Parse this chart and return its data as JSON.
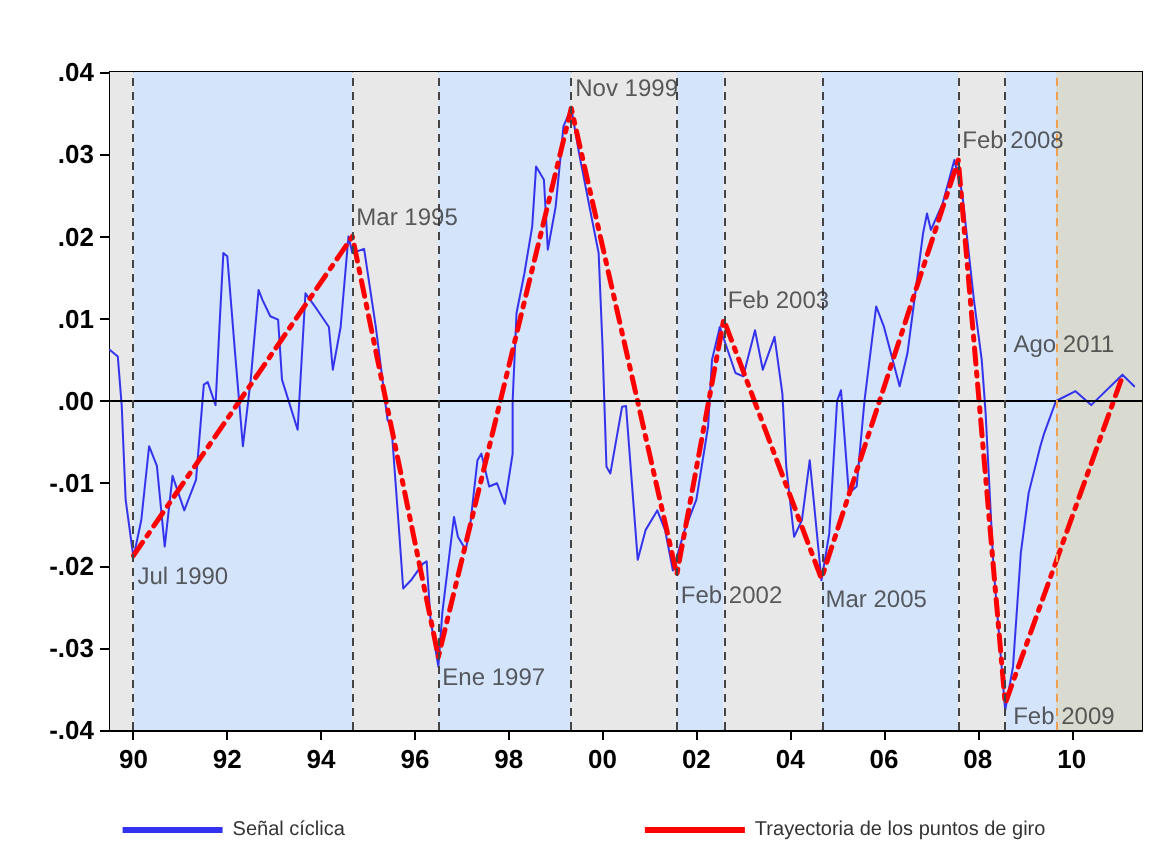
{
  "chart_data": {
    "type": "line",
    "xlim": [
      "1990-01",
      "2012-01"
    ],
    "xticks": [
      {
        "value": "1990-07",
        "label": "90"
      },
      {
        "value": "1992-07",
        "label": "92"
      },
      {
        "value": "1994-07",
        "label": "94"
      },
      {
        "value": "1996-07",
        "label": "96"
      },
      {
        "value": "1998-07",
        "label": "98"
      },
      {
        "value": "2000-07",
        "label": "00"
      },
      {
        "value": "2002-07",
        "label": "02"
      },
      {
        "value": "2004-07",
        "label": "04"
      },
      {
        "value": "2006-07",
        "label": "06"
      },
      {
        "value": "2008-07",
        "label": "08"
      },
      {
        "value": "2010-07",
        "label": "10"
      }
    ],
    "ylim": [
      -0.04,
      0.04
    ],
    "yticks": [
      {
        "value": -0.04,
        "label": "-.04"
      },
      {
        "value": -0.03,
        "label": "-.03"
      },
      {
        "value": -0.02,
        "label": "-.02"
      },
      {
        "value": -0.01,
        "label": "-.01"
      },
      {
        "value": 0,
        "label": ".00"
      },
      {
        "value": 0.01,
        "label": ".01"
      },
      {
        "value": 0.02,
        "label": ".02"
      },
      {
        "value": 0.03,
        "label": ".03"
      },
      {
        "value": 0.04,
        "label": ".04"
      }
    ],
    "grid": false,
    "legend": "bottom",
    "marker": "none",
    "series": [
      {
        "name": "Señal cíclica",
        "color": "#3333ee",
        "line_style": "solid",
        "x": [
          "1990-01",
          "1990-03",
          "1990-04",
          "1990-05",
          "1990-07",
          "1990-09",
          "1990-11",
          "1991-01",
          "1991-03",
          "1991-05",
          "1991-08",
          "1991-11",
          "1992-01",
          "1992-02",
          "1992-04",
          "1992-05",
          "1992-06",
          "1992-07",
          "1992-09",
          "1992-11",
          "1993-01",
          "1993-03",
          "1993-04",
          "1993-06",
          "1993-08",
          "1993-09",
          "1994-01",
          "1994-03",
          "1994-06",
          "1994-09",
          "1994-10",
          "1994-12",
          "1995-02",
          "1995-03",
          "1995-06",
          "1995-09",
          "1995-12",
          "1996-01",
          "1996-03",
          "1996-04",
          "1996-06",
          "1996-09",
          "1996-10",
          "1996-11",
          "1997-01",
          "1997-02",
          "1997-05",
          "1997-06",
          "1997-08",
          "1997-09",
          "1997-11",
          "1997-12",
          "1998-02",
          "1998-04",
          "1998-06",
          "1998-08",
          "1998-08",
          "1998-09",
          "1998-11",
          "1999-01",
          "1999-02",
          "1999-04",
          "1999-05",
          "1999-07",
          "1999-09",
          "1999-11",
          "2000-01",
          "2000-04",
          "2000-06",
          "2000-07",
          "2000-08",
          "2000-09",
          "2000-12",
          "2001-01",
          "2001-04",
          "2001-06",
          "2001-09",
          "2001-11",
          "2002-01",
          "2002-04",
          "2002-07",
          "2002-10",
          "2002-11",
          "2003-01",
          "2003-05",
          "2003-07",
          "2003-10",
          "2003-12",
          "2004-03",
          "2004-05",
          "2004-06",
          "2004-08",
          "2004-10",
          "2004-12",
          "2005-01",
          "2005-03",
          "2005-05",
          "2005-07",
          "2005-08",
          "2005-10",
          "2005-12",
          "2006-02",
          "2006-05",
          "2006-07",
          "2006-11",
          "2007-01",
          "2007-05",
          "2007-06",
          "2007-07",
          "2007-10",
          "2008-01",
          "2008-03",
          "2008-06",
          "2008-08",
          "2008-09",
          "2008-11",
          "2009-02",
          "2009-04",
          "2009-06",
          "2009-08",
          "2009-11",
          "2009-12",
          "2010-03",
          "2010-08",
          "2010-12",
          "2011-08",
          "2011-11"
        ],
        "values": [
          0.0062,
          0.0054,
          -0.0006,
          -0.012,
          -0.019,
          -0.0145,
          -0.0055,
          -0.0079,
          -0.0177,
          -0.0091,
          -0.0133,
          -0.0096,
          0.002,
          0.0023,
          -0.0005,
          0.009,
          0.018,
          0.0176,
          0.0058,
          -0.0055,
          0.0026,
          0.0135,
          0.0123,
          0.0103,
          0.0099,
          0.0026,
          -0.0035,
          0.0131,
          0.0111,
          0.009,
          0.0038,
          0.009,
          0.02,
          0.018,
          0.0185,
          0.009,
          -0.0023,
          -0.0031,
          -0.0161,
          -0.0228,
          -0.0218,
          -0.0198,
          -0.0195,
          -0.0266,
          -0.0323,
          -0.0258,
          -0.0141,
          -0.0165,
          -0.0181,
          -0.0157,
          -0.0072,
          -0.0064,
          -0.0104,
          -0.01,
          -0.0125,
          -0.0064,
          0.0,
          0.0107,
          0.0155,
          0.0212,
          0.0285,
          0.0269,
          0.0184,
          0.0236,
          0.0334,
          0.0356,
          0.0301,
          0.0228,
          0.018,
          0.0066,
          -0.008,
          -0.0088,
          -0.0007,
          -0.0006,
          -0.0193,
          -0.0157,
          -0.0133,
          -0.0157,
          -0.0206,
          -0.0157,
          -0.012,
          -0.0031,
          0.005,
          0.009,
          0.0034,
          0.003,
          0.0086,
          0.0038,
          0.0078,
          0.0009,
          -0.008,
          -0.0165,
          -0.0145,
          -0.0072,
          -0.012,
          -0.0218,
          -0.0161,
          0.0,
          0.0013,
          -0.0112,
          -0.0104,
          0.0,
          0.0115,
          0.009,
          0.0018,
          0.0058,
          0.0204,
          0.0228,
          0.0208,
          0.024,
          0.0293,
          0.0253,
          0.0123,
          0.005,
          -0.0015,
          -0.0201,
          -0.0376,
          -0.0323,
          -0.0185,
          -0.0112,
          -0.0055,
          -0.0039,
          0.0,
          0.0012,
          -0.0005,
          0.0032,
          0.0018
        ]
      },
      {
        "name": "Trayectoria de los puntos de giro",
        "color": "#ff0000",
        "line_style": "dashed",
        "x": [
          "1990-07",
          "1995-03",
          "1997-01",
          "1999-11",
          "2002-02",
          "2003-02",
          "2005-03",
          "2008-02",
          "2009-02",
          "2011-08"
        ],
        "values": [
          -0.0188,
          0.02,
          -0.0311,
          0.0356,
          -0.0211,
          0.0099,
          -0.0216,
          0.0293,
          -0.0368,
          0.003
        ]
      }
    ],
    "bands": [
      {
        "axis": "x",
        "from": "1990-01",
        "to": "1990-07",
        "color": "#e8e8e8"
      },
      {
        "axis": "x",
        "from": "1990-07",
        "to": "1995-03",
        "color": "#d4e5fb"
      },
      {
        "axis": "x",
        "from": "1995-03",
        "to": "1997-01",
        "color": "#e8e8e8"
      },
      {
        "axis": "x",
        "from": "1997-01",
        "to": "1999-11",
        "color": "#d4e5fb"
      },
      {
        "axis": "x",
        "from": "1999-11",
        "to": "2002-02",
        "color": "#e8e8e8"
      },
      {
        "axis": "x",
        "from": "2002-02",
        "to": "2003-02",
        "color": "#d4e5fb"
      },
      {
        "axis": "x",
        "from": "2003-02",
        "to": "2005-03",
        "color": "#e8e8e8"
      },
      {
        "axis": "x",
        "from": "2005-03",
        "to": "2008-02",
        "color": "#d4e5fb"
      },
      {
        "axis": "x",
        "from": "2008-02",
        "to": "2009-02",
        "color": "#e8e8e8"
      },
      {
        "axis": "x",
        "from": "2009-02",
        "to": "2010-03",
        "color": "#d4e5fb"
      },
      {
        "axis": "x",
        "from": "2010-03",
        "to": "2012-01",
        "color": "#d9dbd0"
      }
    ],
    "ref_lines": [
      {
        "axis": "y",
        "value": 0,
        "color": "#000000",
        "line_style": "solid"
      },
      {
        "axis": "x",
        "value": "1990-07",
        "color": "#444444",
        "line_style": "dashed"
      },
      {
        "axis": "x",
        "value": "1995-03",
        "color": "#444444",
        "line_style": "dashed"
      },
      {
        "axis": "x",
        "value": "1997-01",
        "color": "#444444",
        "line_style": "dashed"
      },
      {
        "axis": "x",
        "value": "1999-11",
        "color": "#444444",
        "line_style": "dashed"
      },
      {
        "axis": "x",
        "value": "2002-02",
        "color": "#444444",
        "line_style": "dashed"
      },
      {
        "axis": "x",
        "value": "2003-02",
        "color": "#444444",
        "line_style": "dashed"
      },
      {
        "axis": "x",
        "value": "2005-03",
        "color": "#444444",
        "line_style": "dashed"
      },
      {
        "axis": "x",
        "value": "2008-02",
        "color": "#444444",
        "line_style": "dashed"
      },
      {
        "axis": "x",
        "value": "2009-02",
        "color": "#444444",
        "line_style": "dashed"
      },
      {
        "axis": "x",
        "value": "2010-03",
        "color": "#f0a050",
        "line_style": "dashed"
      }
    ],
    "annotations": [
      {
        "text": "Jul 1990",
        "x": "1990-07",
        "y": -0.0188
      },
      {
        "text": "Mar 1995",
        "x": "1995-03",
        "y": 0.02
      },
      {
        "text": "Ene 1997",
        "x": "1997-01",
        "y": -0.0311
      },
      {
        "text": "Nov 1999",
        "x": "1999-11",
        "y": 0.0356
      },
      {
        "text": "Feb 2002",
        "x": "2002-02",
        "y": -0.0211
      },
      {
        "text": "Feb 2003",
        "x": "2003-02",
        "y": 0.0099
      },
      {
        "text": "Mar 2005",
        "x": "2005-03",
        "y": -0.0216
      },
      {
        "text": "Feb 2008",
        "x": "2008-02",
        "y": 0.0293
      },
      {
        "text": "Feb 2009",
        "x": "2009-02",
        "y": -0.0368
      },
      {
        "text": "Ago 2011",
        "x": "2011-08",
        "y": 0.003
      }
    ]
  }
}
